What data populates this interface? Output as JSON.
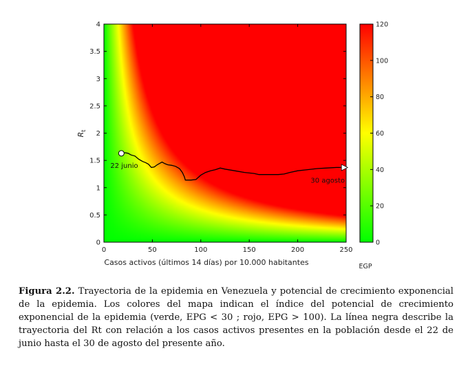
{
  "chart_data": {
    "type": "heatmap",
    "xlabel": "Casos activos (últimos 14 días) por 10.000 habitantes",
    "ylabel": "R",
    "ylabel_sub": "t",
    "xlim": [
      0,
      250
    ],
    "ylim": [
      0,
      4
    ],
    "x_ticks": [
      0,
      50,
      100,
      150,
      200,
      250
    ],
    "y_ticks": [
      0,
      0.5,
      1,
      1.5,
      2,
      2.5,
      3,
      3.5,
      4
    ],
    "y_tick_labels": [
      "0",
      "0.5",
      "1",
      "1.5",
      "2",
      "2.5",
      "3",
      "3.5",
      "4"
    ],
    "colorbar": {
      "label": "EGP",
      "range": [
        0,
        120
      ],
      "ticks": [
        0,
        20,
        40,
        60,
        80,
        100,
        120
      ],
      "colors": [
        "#00ff00",
        "#ffff00",
        "#ff0000"
      ]
    },
    "heatmap_function": "EPG = casos_activos × R_t",
    "trajectory": {
      "color": "#000000",
      "x": [
        18,
        22,
        25,
        28,
        32,
        36,
        40,
        43,
        46,
        49,
        52,
        55,
        58,
        60,
        63,
        66,
        70,
        74,
        78,
        81,
        83,
        84,
        86,
        90,
        95,
        100,
        105,
        110,
        115,
        120,
        125,
        135,
        145,
        155,
        160,
        170,
        180,
        186,
        192,
        200,
        210,
        220,
        230,
        240,
        248
      ],
      "y": [
        1.63,
        1.64,
        1.63,
        1.6,
        1.58,
        1.52,
        1.48,
        1.46,
        1.43,
        1.37,
        1.38,
        1.42,
        1.45,
        1.47,
        1.44,
        1.42,
        1.41,
        1.39,
        1.35,
        1.28,
        1.2,
        1.14,
        1.14,
        1.14,
        1.15,
        1.23,
        1.28,
        1.31,
        1.33,
        1.36,
        1.34,
        1.31,
        1.28,
        1.26,
        1.24,
        1.24,
        1.24,
        1.25,
        1.28,
        1.31,
        1.33,
        1.35,
        1.36,
        1.37,
        1.37
      ]
    },
    "annotations": [
      {
        "text": "22 junio",
        "x": 18,
        "y": 1.63,
        "marker": "circle"
      },
      {
        "text": "30 agosto",
        "x": 248,
        "y": 1.37,
        "marker": "triangle-right"
      }
    ]
  },
  "caption": {
    "label": "Figura 2.2.",
    "text": "Trayectoria de la epidemia en Venezuela y potencial de crecimiento exponencial de la epidemia. Los colores del mapa indican el índice del potencial de crecimiento exponencial de la epidemia (verde, EPG < 30 ; rojo, EPG > 100). La línea negra describe la trayectoria del Rt con relación a los casos activos presentes en la población desde el 22 de junio hasta el 30 de agosto del presente año."
  }
}
